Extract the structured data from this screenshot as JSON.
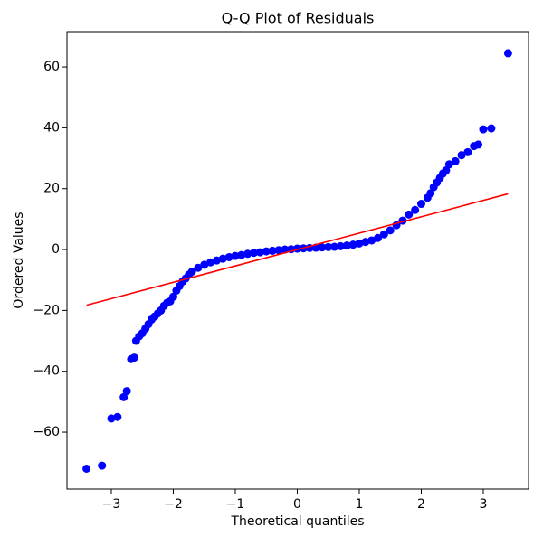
{
  "chart_data": {
    "type": "scatter",
    "title": "Q-Q Plot of Residuals",
    "xlabel": "Theoretical quantiles",
    "ylabel": "Ordered Values",
    "xlim": [
      -3.715,
      3.73
    ],
    "ylim": [
      -78.7,
      71.6
    ],
    "xticks": [
      {
        "value": -3,
        "label": "−3"
      },
      {
        "value": -2,
        "label": "−2"
      },
      {
        "value": -1,
        "label": "−1"
      },
      0,
      1,
      2,
      3
    ],
    "yticks": [
      {
        "value": -60,
        "label": "−60"
      },
      {
        "value": -40,
        "label": "−40"
      },
      {
        "value": -20,
        "label": "−20"
      },
      0,
      20,
      40,
      60
    ],
    "series": [
      {
        "type": "scatter",
        "color": "#0000ff",
        "x": [
          -3.4,
          -3.15,
          -3.0,
          -2.9,
          -2.8,
          -2.75,
          -2.68,
          -2.63,
          -2.6,
          -2.55,
          -2.5,
          -2.45,
          -2.4,
          -2.35,
          -2.3,
          -2.25,
          -2.2,
          -2.15,
          -2.1,
          -2.05,
          -2.0,
          -1.95,
          -1.9,
          -1.85,
          -1.8,
          -1.75,
          -1.7,
          -1.6,
          -1.5,
          -1.4,
          -1.3,
          -1.2,
          -1.1,
          -1.0,
          -0.9,
          -0.8,
          -0.7,
          -0.6,
          -0.5,
          -0.4,
          -0.3,
          -0.2,
          -0.1,
          0,
          0.1,
          0.2,
          0.3,
          0.4,
          0.5,
          0.6,
          0.7,
          0.8,
          0.9,
          1.0,
          1.1,
          1.2,
          1.3,
          1.4,
          1.5,
          1.6,
          1.7,
          1.8,
          1.9,
          2.0,
          2.1,
          2.15,
          2.2,
          2.25,
          2.3,
          2.35,
          2.4,
          2.45,
          2.55,
          2.65,
          2.75,
          2.85,
          2.92,
          3.0,
          3.13,
          3.4
        ],
        "values": [
          -72,
          -71,
          -55.5,
          -55,
          -48.5,
          -46.5,
          -36,
          -35.5,
          -30,
          -28.5,
          -27.5,
          -26,
          -24.5,
          -23,
          -22,
          -21,
          -20,
          -18.5,
          -17.5,
          -17,
          -15.5,
          -13.5,
          -12,
          -10.5,
          -9.5,
          -8.3,
          -7.3,
          -6,
          -5,
          -4.2,
          -3.6,
          -3,
          -2.5,
          -2.1,
          -1.8,
          -1.4,
          -1.1,
          -0.9,
          -0.6,
          -0.4,
          -0.2,
          0,
          0.1,
          0.3,
          0.4,
          0.5,
          0.6,
          0.7,
          0.8,
          0.9,
          1.1,
          1.3,
          1.6,
          2,
          2.5,
          3,
          3.8,
          5,
          6.3,
          8,
          9.5,
          11.5,
          13,
          15,
          17,
          18.5,
          20.5,
          22,
          23.5,
          25,
          26,
          28,
          29,
          31,
          32,
          34,
          34.5,
          39.5,
          39.8,
          64.5
        ]
      },
      {
        "type": "line",
        "color": "#ff0000",
        "x": [
          -3.4,
          3.4
        ],
        "values": [
          -18.3,
          18.3
        ]
      }
    ]
  }
}
